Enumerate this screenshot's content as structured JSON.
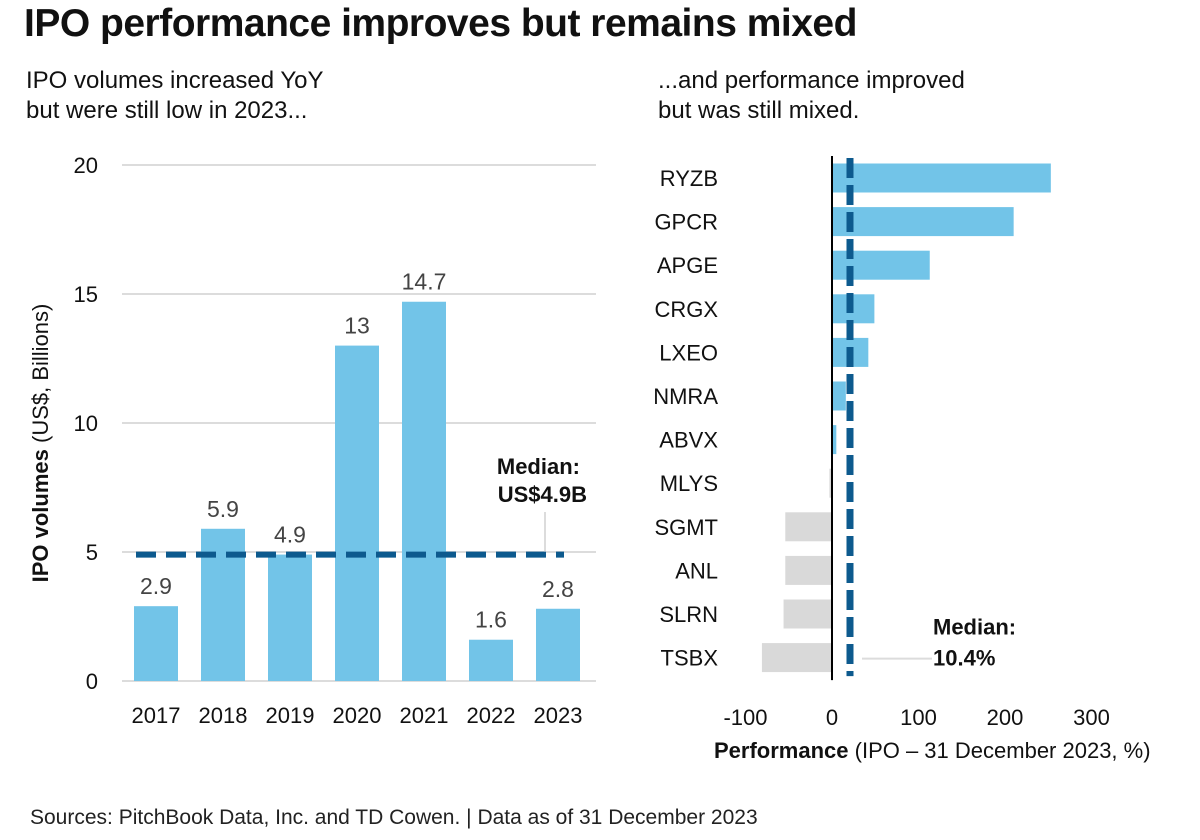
{
  "title": "IPO performance improves but remains mixed",
  "left_subtitle": [
    "IPO volumes increased YoY",
    "but were still low in 2023..."
  ],
  "right_subtitle": [
    "...and performance improved",
    "but was still mixed."
  ],
  "source": "Sources: PitchBook Data, Inc. and TD Cowen. | Data as of 31 December 2023",
  "colors": {
    "bar_positive": "#72c4e8",
    "bar_negative": "#d9d9d9",
    "median_line": "#0d5a8e",
    "grid": "#dcdcdc",
    "text": "#111111",
    "value_label": "#444444"
  },
  "chart_data": [
    {
      "type": "bar",
      "title": "IPO volumes increased YoY but were still low in 2023...",
      "xlabel": "",
      "ylabel_bold": "IPO volumes",
      "ylabel_rest": "(US$, Billions)",
      "categories": [
        "2017",
        "2018",
        "2019",
        "2020",
        "2021",
        "2022",
        "2023"
      ],
      "values": [
        2.9,
        5.9,
        4.9,
        13,
        14.7,
        1.6,
        2.8
      ],
      "value_labels": [
        "2.9",
        "5.9",
        "4.9",
        "13",
        "14.7",
        "1.6",
        "2.8"
      ],
      "ylim": [
        0,
        20
      ],
      "yticks": [
        0,
        5,
        10,
        15,
        20
      ],
      "grid": true,
      "median": {
        "value": 4.9,
        "label_line1": "Median:",
        "label_line2": "US$4.9B"
      }
    },
    {
      "type": "bar",
      "orientation": "horizontal",
      "title": "...and performance improved but was still mixed.",
      "xlabel_bold": "Performance",
      "xlabel_rest": "(IPO – 31 December 2023, %)",
      "categories": [
        "RYZB",
        "GPCR",
        "APGE",
        "CRGX",
        "LXEO",
        "NMRA",
        "ABVX",
        "MLYS",
        "SGMT",
        "ANL",
        "SLRN",
        "TSBX"
      ],
      "values": [
        253,
        210,
        113,
        49,
        42,
        16,
        5,
        -3,
        -54,
        -54,
        -56,
        -81
      ],
      "xlim": [
        -100,
        330
      ],
      "xticks": [
        -100,
        0,
        100,
        200,
        300
      ],
      "grid": false,
      "median": {
        "value": 10.4,
        "label_line1": "Median:",
        "label_line2": "10.4%"
      }
    }
  ]
}
